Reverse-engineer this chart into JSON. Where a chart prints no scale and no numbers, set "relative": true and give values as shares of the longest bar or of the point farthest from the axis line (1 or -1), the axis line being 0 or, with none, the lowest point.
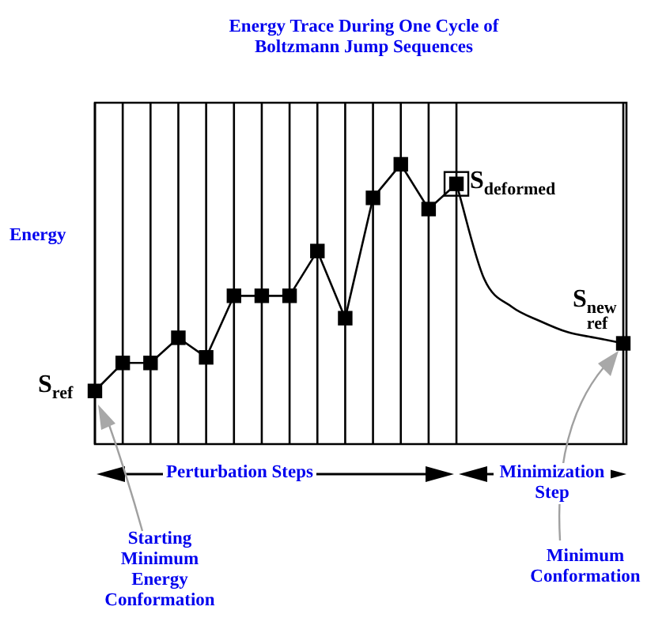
{
  "chart_data": {
    "type": "line",
    "title": "Energy Trace During One Cycle of Boltzmann Jump Sequences",
    "ylabel": "Energy",
    "relative": true,
    "legend": false,
    "tick_labels": false,
    "categories": [
      null,
      null,
      null,
      null,
      null,
      null,
      null,
      null,
      null,
      null,
      null,
      null,
      null,
      null,
      null,
      null,
      null,
      null,
      null,
      null
    ],
    "series": [
      {
        "color": "#000000",
        "marker": "square",
        "values": [
          0.19,
          0.29,
          0.29,
          0.38,
          0.31,
          0.53,
          0.53,
          0.53,
          0.69,
          0.45,
          0.88,
          1,
          0.84,
          0.93,
          null,
          null,
          null,
          null,
          null,
          0.36
        ]
      },
      {
        "color": "#000000",
        "marker": "none",
        "values": [
          null,
          null,
          null,
          null,
          null,
          null,
          null,
          null,
          null,
          null,
          null,
          null,
          null,
          0.93,
          0.59,
          0.49,
          0.44,
          0.4,
          0.38,
          0.36
        ]
      }
    ],
    "grid": "x",
    "annotations": [
      "S$_{ref}$",
      "S$_{deformed}$",
      "S$_{new ref}$",
      "Perturbation Steps",
      "Minimization Step",
      "Starting Minimum Energy Conformation",
      "Minimum Conformation"
    ]
  }
}
